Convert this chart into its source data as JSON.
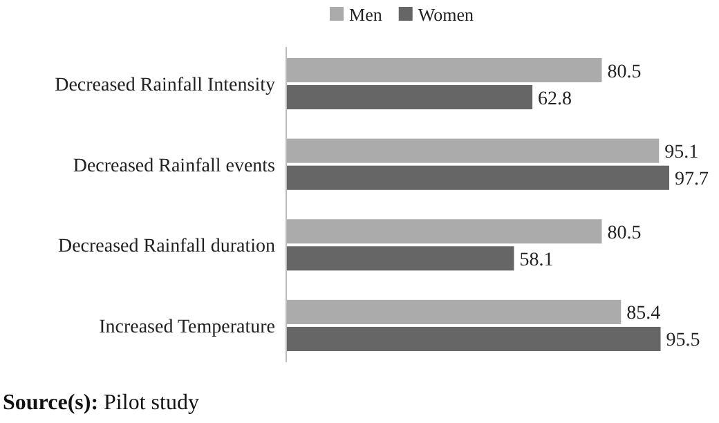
{
  "chart_data": {
    "type": "bar",
    "orientation": "horizontal",
    "categories": [
      "Decreased Rainfall Intensity",
      "Decreased Rainfall events",
      "Decreased Rainfall duration",
      "Increased Temperature"
    ],
    "series": [
      {
        "name": "Men",
        "color": "#ababab",
        "values": [
          80.5,
          95.1,
          80.5,
          85.4
        ]
      },
      {
        "name": "Women",
        "color": "#666666",
        "values": [
          62.8,
          97.7,
          58.1,
          95.5
        ]
      }
    ],
    "relative": false,
    "data_labels": true,
    "legend": "top",
    "annotations": [
      "Source(s): Pilot study"
    ]
  }
}
